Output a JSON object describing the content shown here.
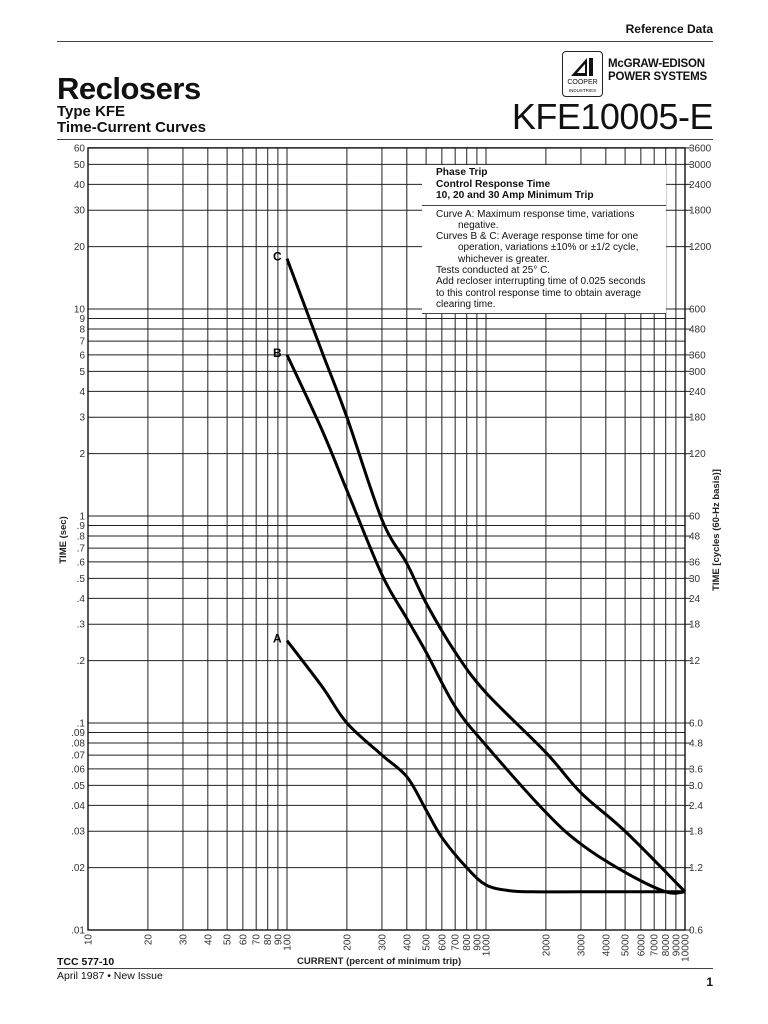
{
  "header": {
    "section": "Reference Data",
    "title": "Reclosers",
    "subtitle_1": "Type KFE",
    "subtitle_2": "Time-Current Curves",
    "logo_text_1": "COOPER",
    "logo_text_2": "INDUSTRIES",
    "company_1": "McGRAW-EDISON",
    "company_2": "POWER SYSTEMS",
    "doc_number": "KFE10005-E"
  },
  "legend": {
    "heading_1": "Phase Trip",
    "heading_2": "Control Response Time",
    "heading_3": "10, 20 and 30 Amp Minimum Trip",
    "line_a_1": "Curve A:  Maximum response time, variations",
    "line_a_2": "negative.",
    "line_bc_1": "Curves B & C: Average response time for one",
    "line_bc_2": "operation, variations ±10% or ±1/2 cycle,",
    "line_bc_3": "whichever is greater.",
    "line_tests": "Tests conducted at 25° C.",
    "line_add_1": "Add recloser interrupting time of 0.025 seconds",
    "line_add_2": "to this control response time to obtain average",
    "line_add_3": "clearing time."
  },
  "footer": {
    "tcc": "TCC 577-10",
    "date": "April 1987 • New Issue",
    "page": "1"
  },
  "chart_data": {
    "type": "line",
    "title": "Phase Trip Control Response Time — 10, 20 and 30 Amp Minimum Trip",
    "xlabel": "CURRENT (percent of minimum trip)",
    "ylabel": "TIME (sec)",
    "y2label": "TIME [cycles (60-Hz basis)]",
    "xscale": "log",
    "yscale": "log",
    "xlim": [
      10,
      10000
    ],
    "ylim": [
      0.01,
      60
    ],
    "grid": true,
    "x_ticks": [
      10,
      20,
      30,
      40,
      50,
      60,
      70,
      80,
      90,
      100,
      200,
      300,
      400,
      500,
      600,
      700,
      800,
      900,
      1000,
      2000,
      3000,
      4000,
      5000,
      6000,
      7000,
      8000,
      9000,
      10000
    ],
    "x_tick_labels": [
      "10",
      "20",
      "30",
      "40",
      "50",
      "60",
      "70",
      "80",
      "90",
      "100",
      "200",
      "300",
      "400",
      "500",
      "600",
      "700",
      "800",
      "900",
      "1000",
      "2000",
      "3000",
      "4000",
      "5000",
      "6000",
      "7000",
      "8000",
      "9000",
      "10000"
    ],
    "y_ticks": [
      60,
      50,
      40,
      30,
      20,
      10,
      9,
      8,
      7,
      6,
      5,
      4,
      3,
      2,
      1,
      0.9,
      0.8,
      0.7,
      0.6,
      0.5,
      0.4,
      0.3,
      0.2,
      0.1,
      0.09,
      0.08,
      0.07,
      0.06,
      0.05,
      0.04,
      0.03,
      0.02,
      0.01
    ],
    "y_tick_labels": [
      "60",
      "50",
      "40",
      "30",
      "20",
      "10",
      "9",
      "8",
      "7",
      "6",
      "5",
      "4",
      "3",
      "2",
      "1",
      ".9",
      ".8",
      ".7",
      ".6",
      ".5",
      ".4",
      ".3",
      ".2",
      ".1",
      ".09",
      ".08",
      ".07",
      ".06",
      ".05",
      ".04",
      ".03",
      ".02",
      ".01"
    ],
    "y2_ticks": [
      {
        "sec": 60,
        "label": "3600"
      },
      {
        "sec": 50,
        "label": "3000"
      },
      {
        "sec": 40,
        "label": "2400"
      },
      {
        "sec": 30,
        "label": "1800"
      },
      {
        "sec": 20,
        "label": "1200"
      },
      {
        "sec": 10,
        "label": "600"
      },
      {
        "sec": 8,
        "label": "480"
      },
      {
        "sec": 6,
        "label": "360"
      },
      {
        "sec": 5,
        "label": "300"
      },
      {
        "sec": 4,
        "label": "240"
      },
      {
        "sec": 3,
        "label": "180"
      },
      {
        "sec": 2,
        "label": "120"
      },
      {
        "sec": 1,
        "label": "60"
      },
      {
        "sec": 0.8,
        "label": "48"
      },
      {
        "sec": 0.6,
        "label": "36"
      },
      {
        "sec": 0.5,
        "label": "30"
      },
      {
        "sec": 0.4,
        "label": "24"
      },
      {
        "sec": 0.3,
        "label": "18"
      },
      {
        "sec": 0.2,
        "label": "12"
      },
      {
        "sec": 0.1,
        "label": "6.0"
      },
      {
        "sec": 0.08,
        "label": "4.8"
      },
      {
        "sec": 0.06,
        "label": "3.6"
      },
      {
        "sec": 0.05,
        "label": "3.0"
      },
      {
        "sec": 0.04,
        "label": "2.4"
      },
      {
        "sec": 0.03,
        "label": "1.8"
      },
      {
        "sec": 0.02,
        "label": "1.2"
      },
      {
        "sec": 0.01,
        "label": "0.6"
      }
    ],
    "series": [
      {
        "name": "C",
        "x": [
          100,
          150,
          200,
          300,
          400,
          500,
          700,
          1000,
          2000,
          3000,
          5000,
          10000
        ],
        "y": [
          17.5,
          6.2,
          3.0,
          0.96,
          0.59,
          0.38,
          0.22,
          0.14,
          0.072,
          0.046,
          0.03,
          0.0153
        ]
      },
      {
        "name": "B",
        "x": [
          100,
          150,
          200,
          300,
          400,
          500,
          700,
          1000,
          2000,
          3000,
          5000,
          8000,
          10000
        ],
        "y": [
          6.0,
          2.6,
          1.33,
          0.52,
          0.32,
          0.22,
          0.12,
          0.078,
          0.037,
          0.026,
          0.019,
          0.0153,
          0.0153
        ]
      },
      {
        "name": "A",
        "x": [
          100,
          150,
          200,
          300,
          400,
          500,
          600,
          800,
          1000,
          1300,
          1700,
          3000,
          10000
        ],
        "y": [
          0.25,
          0.15,
          0.1,
          0.07,
          0.055,
          0.038,
          0.028,
          0.02,
          0.0165,
          0.0155,
          0.0153,
          0.0153,
          0.0153
        ]
      }
    ]
  }
}
